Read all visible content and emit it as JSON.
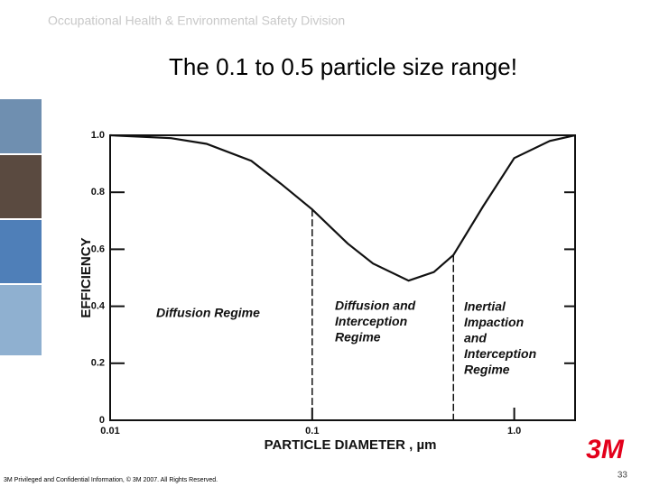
{
  "header": "Occupational Health & Environmental Safety Division",
  "title": "The 0.1 to 0.5 particle size range!",
  "chart_data": {
    "type": "line",
    "x": [
      0.01,
      0.02,
      0.03,
      0.05,
      0.07,
      0.1,
      0.15,
      0.2,
      0.3,
      0.4,
      0.5,
      0.7,
      1,
      1.5,
      2
    ],
    "values": [
      1.0,
      0.99,
      0.97,
      0.91,
      0.83,
      0.74,
      0.62,
      0.55,
      0.49,
      0.52,
      0.58,
      0.75,
      0.92,
      0.98,
      1.0
    ],
    "color": "#111111",
    "xscale": "log",
    "xlim": [
      0.01,
      2
    ],
    "ylim": [
      0,
      1
    ],
    "xticks": [
      0.01,
      0.1,
      {
        "value": 1,
        "label": "1.0"
      }
    ],
    "yticks": [
      0,
      0.2,
      0.4,
      0.6,
      0.8,
      {
        "value": 1,
        "label": "1.0"
      }
    ],
    "boundaries": [
      0.1,
      0.5
    ],
    "xlabel": "PARTICLE DIAMETER , µm",
    "ylabel": "EFFICIENCY",
    "annotations": [
      {
        "lines": [
          "Diffusion Regime"
        ]
      },
      {
        "lines": [
          "Diffusion and",
          "Interception",
          "Regime"
        ]
      },
      {
        "lines": [
          "Inertial",
          "Impaction",
          "and",
          "Interception",
          "Regime"
        ]
      }
    ]
  },
  "footer": "3M Privileged and Confidential Information, © 3M 2007. All Rights Reserved.",
  "logo": "3M",
  "page_number": "33"
}
